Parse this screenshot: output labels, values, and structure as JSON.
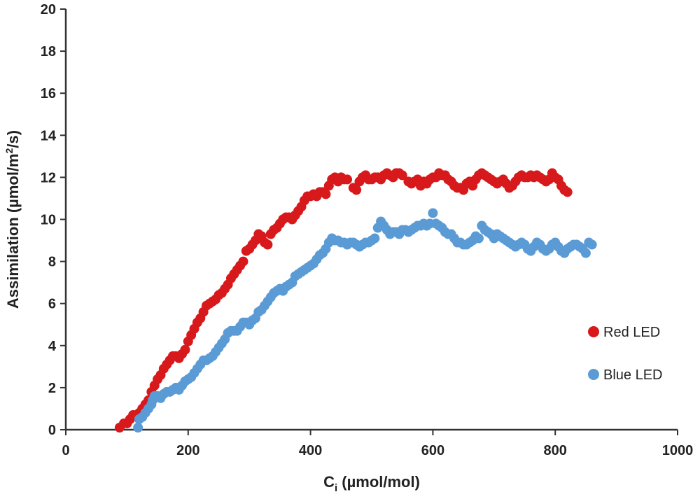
{
  "chart_data": {
    "type": "scatter",
    "title": "",
    "xlabel": {
      "main": "C",
      "sub": "i",
      "rest": " (µmol/mol)"
    },
    "ylabel": {
      "main": "Assimilation (µmol/m",
      "sup": "2",
      "rest": "/s)"
    },
    "xlim": [
      0,
      1000
    ],
    "ylim": [
      0,
      20
    ],
    "x_ticks": [
      0,
      200,
      400,
      600,
      800,
      1000
    ],
    "y_ticks": [
      0,
      2,
      4,
      6,
      8,
      10,
      12,
      14,
      16,
      18,
      20
    ],
    "grid": false,
    "legend_position": "right",
    "series": [
      {
        "name": "Red LED",
        "color": "#d7191c",
        "points": [
          [
            88,
            0.1
          ],
          [
            95,
            0.3
          ],
          [
            100,
            0.3
          ],
          [
            105,
            0.5
          ],
          [
            110,
            0.7
          ],
          [
            115,
            0.7
          ],
          [
            120,
            0.8
          ],
          [
            125,
            1.0
          ],
          [
            130,
            1.2
          ],
          [
            135,
            1.4
          ],
          [
            140,
            1.8
          ],
          [
            145,
            2.1
          ],
          [
            150,
            2.4
          ],
          [
            155,
            2.6
          ],
          [
            160,
            2.9
          ],
          [
            165,
            3.1
          ],
          [
            170,
            3.3
          ],
          [
            175,
            3.5
          ],
          [
            180,
            3.5
          ],
          [
            185,
            3.4
          ],
          [
            190,
            3.6
          ],
          [
            195,
            3.8
          ],
          [
            200,
            4.2
          ],
          [
            205,
            4.5
          ],
          [
            210,
            4.8
          ],
          [
            215,
            5.1
          ],
          [
            220,
            5.3
          ],
          [
            225,
            5.6
          ],
          [
            230,
            5.9
          ],
          [
            235,
            6.0
          ],
          [
            240,
            6.1
          ],
          [
            245,
            6.2
          ],
          [
            250,
            6.4
          ],
          [
            255,
            6.5
          ],
          [
            260,
            6.7
          ],
          [
            265,
            6.9
          ],
          [
            270,
            7.2
          ],
          [
            275,
            7.4
          ],
          [
            280,
            7.6
          ],
          [
            285,
            7.8
          ],
          [
            290,
            8.0
          ],
          [
            295,
            8.5
          ],
          [
            300,
            8.6
          ],
          [
            305,
            8.8
          ],
          [
            310,
            9.0
          ],
          [
            315,
            9.3
          ],
          [
            320,
            9.2
          ],
          [
            325,
            8.9
          ],
          [
            330,
            8.8
          ],
          [
            335,
            9.3
          ],
          [
            340,
            9.5
          ],
          [
            345,
            9.6
          ],
          [
            350,
            9.8
          ],
          [
            355,
            10.0
          ],
          [
            360,
            10.1
          ],
          [
            365,
            10.1
          ],
          [
            370,
            10.0
          ],
          [
            375,
            10.2
          ],
          [
            380,
            10.4
          ],
          [
            385,
            10.6
          ],
          [
            390,
            10.9
          ],
          [
            395,
            11.1
          ],
          [
            400,
            11.1
          ],
          [
            405,
            11.2
          ],
          [
            410,
            11.1
          ],
          [
            415,
            11.3
          ],
          [
            420,
            11.3
          ],
          [
            425,
            11.2
          ],
          [
            430,
            11.6
          ],
          [
            435,
            11.9
          ],
          [
            440,
            12.0
          ],
          [
            445,
            11.8
          ],
          [
            450,
            12.0
          ],
          [
            455,
            11.9
          ],
          [
            460,
            11.9
          ],
          [
            470,
            11.5
          ],
          [
            475,
            11.4
          ],
          [
            480,
            11.8
          ],
          [
            485,
            12.0
          ],
          [
            490,
            12.1
          ],
          [
            495,
            11.9
          ],
          [
            500,
            11.9
          ],
          [
            505,
            12.0
          ],
          [
            510,
            12.0
          ],
          [
            515,
            11.9
          ],
          [
            520,
            12.1
          ],
          [
            525,
            12.2
          ],
          [
            530,
            12.1
          ],
          [
            535,
            12.0
          ],
          [
            540,
            12.2
          ],
          [
            545,
            12.2
          ],
          [
            550,
            12.1
          ],
          [
            560,
            11.8
          ],
          [
            565,
            11.7
          ],
          [
            570,
            11.8
          ],
          [
            575,
            11.9
          ],
          [
            580,
            11.6
          ],
          [
            585,
            11.8
          ],
          [
            590,
            11.7
          ],
          [
            595,
            11.9
          ],
          [
            600,
            12.0
          ],
          [
            605,
            12.0
          ],
          [
            610,
            12.2
          ],
          [
            615,
            12.1
          ],
          [
            620,
            12.1
          ],
          [
            625,
            11.9
          ],
          [
            630,
            11.8
          ],
          [
            635,
            11.6
          ],
          [
            640,
            11.5
          ],
          [
            645,
            11.5
          ],
          [
            650,
            11.4
          ],
          [
            655,
            11.7
          ],
          [
            660,
            11.8
          ],
          [
            665,
            11.6
          ],
          [
            670,
            11.9
          ],
          [
            675,
            12.1
          ],
          [
            680,
            12.2
          ],
          [
            685,
            12.1
          ],
          [
            690,
            12.0
          ],
          [
            695,
            11.9
          ],
          [
            700,
            11.8
          ],
          [
            705,
            11.7
          ],
          [
            710,
            11.8
          ],
          [
            715,
            11.9
          ],
          [
            720,
            11.7
          ],
          [
            725,
            11.5
          ],
          [
            730,
            11.6
          ],
          [
            735,
            11.8
          ],
          [
            740,
            12.0
          ],
          [
            745,
            12.1
          ],
          [
            750,
            12.0
          ],
          [
            755,
            12.0
          ],
          [
            760,
            12.1
          ],
          [
            765,
            12.0
          ],
          [
            770,
            12.1
          ],
          [
            775,
            12.0
          ],
          [
            780,
            11.9
          ],
          [
            785,
            11.8
          ],
          [
            790,
            11.9
          ],
          [
            795,
            12.2
          ],
          [
            800,
            12.0
          ],
          [
            805,
            11.9
          ],
          [
            810,
            11.6
          ],
          [
            815,
            11.4
          ],
          [
            820,
            11.3
          ]
        ]
      },
      {
        "name": "Blue LED",
        "color": "#5b9bd5",
        "points": [
          [
            118,
            0.1
          ],
          [
            120,
            0.5
          ],
          [
            125,
            0.6
          ],
          [
            130,
            0.8
          ],
          [
            135,
            1.0
          ],
          [
            140,
            1.2
          ],
          [
            142,
            1.4
          ],
          [
            145,
            1.6
          ],
          [
            150,
            1.6
          ],
          [
            155,
            1.5
          ],
          [
            160,
            1.7
          ],
          [
            165,
            1.8
          ],
          [
            170,
            1.8
          ],
          [
            175,
            1.9
          ],
          [
            180,
            2.0
          ],
          [
            185,
            1.9
          ],
          [
            190,
            2.1
          ],
          [
            195,
            2.3
          ],
          [
            200,
            2.4
          ],
          [
            205,
            2.5
          ],
          [
            210,
            2.7
          ],
          [
            215,
            2.9
          ],
          [
            220,
            3.1
          ],
          [
            225,
            3.3
          ],
          [
            230,
            3.3
          ],
          [
            235,
            3.4
          ],
          [
            240,
            3.5
          ],
          [
            245,
            3.7
          ],
          [
            250,
            3.9
          ],
          [
            255,
            4.1
          ],
          [
            260,
            4.3
          ],
          [
            265,
            4.6
          ],
          [
            270,
            4.7
          ],
          [
            275,
            4.7
          ],
          [
            280,
            4.7
          ],
          [
            285,
            4.9
          ],
          [
            290,
            5.1
          ],
          [
            295,
            5.1
          ],
          [
            300,
            5.0
          ],
          [
            305,
            5.2
          ],
          [
            310,
            5.3
          ],
          [
            315,
            5.6
          ],
          [
            320,
            5.7
          ],
          [
            325,
            5.9
          ],
          [
            330,
            6.1
          ],
          [
            335,
            6.3
          ],
          [
            340,
            6.5
          ],
          [
            345,
            6.6
          ],
          [
            350,
            6.7
          ],
          [
            355,
            6.6
          ],
          [
            360,
            6.8
          ],
          [
            365,
            6.9
          ],
          [
            370,
            7.0
          ],
          [
            375,
            7.3
          ],
          [
            380,
            7.4
          ],
          [
            385,
            7.5
          ],
          [
            390,
            7.6
          ],
          [
            395,
            7.7
          ],
          [
            400,
            7.8
          ],
          [
            405,
            7.9
          ],
          [
            410,
            8.1
          ],
          [
            415,
            8.3
          ],
          [
            420,
            8.4
          ],
          [
            425,
            8.6
          ],
          [
            430,
            8.9
          ],
          [
            435,
            9.1
          ],
          [
            440,
            9.0
          ],
          [
            445,
            9.0
          ],
          [
            450,
            8.9
          ],
          [
            455,
            8.9
          ],
          [
            460,
            8.8
          ],
          [
            465,
            8.9
          ],
          [
            470,
            8.9
          ],
          [
            475,
            8.8
          ],
          [
            480,
            8.7
          ],
          [
            485,
            8.8
          ],
          [
            490,
            8.9
          ],
          [
            495,
            8.9
          ],
          [
            500,
            9.0
          ],
          [
            505,
            9.1
          ],
          [
            510,
            9.6
          ],
          [
            515,
            9.9
          ],
          [
            520,
            9.7
          ],
          [
            525,
            9.5
          ],
          [
            530,
            9.3
          ],
          [
            535,
            9.4
          ],
          [
            540,
            9.4
          ],
          [
            545,
            9.3
          ],
          [
            550,
            9.5
          ],
          [
            555,
            9.5
          ],
          [
            560,
            9.4
          ],
          [
            565,
            9.5
          ],
          [
            570,
            9.6
          ],
          [
            575,
            9.7
          ],
          [
            580,
            9.7
          ],
          [
            585,
            9.8
          ],
          [
            590,
            9.7
          ],
          [
            595,
            9.8
          ],
          [
            600,
            10.3
          ],
          [
            605,
            9.8
          ],
          [
            610,
            9.7
          ],
          [
            615,
            9.6
          ],
          [
            620,
            9.4
          ],
          [
            625,
            9.3
          ],
          [
            630,
            9.3
          ],
          [
            635,
            9.1
          ],
          [
            640,
            8.9
          ],
          [
            645,
            8.9
          ],
          [
            650,
            8.8
          ],
          [
            655,
            8.8
          ],
          [
            660,
            8.9
          ],
          [
            665,
            9.0
          ],
          [
            670,
            9.2
          ],
          [
            675,
            9.1
          ],
          [
            680,
            9.7
          ],
          [
            685,
            9.5
          ],
          [
            690,
            9.4
          ],
          [
            695,
            9.3
          ],
          [
            700,
            9.1
          ],
          [
            705,
            9.3
          ],
          [
            710,
            9.2
          ],
          [
            715,
            9.1
          ],
          [
            720,
            9.0
          ],
          [
            725,
            8.9
          ],
          [
            730,
            8.8
          ],
          [
            735,
            8.7
          ],
          [
            740,
            8.8
          ],
          [
            745,
            8.9
          ],
          [
            750,
            8.8
          ],
          [
            755,
            8.6
          ],
          [
            760,
            8.5
          ],
          [
            765,
            8.7
          ],
          [
            770,
            8.9
          ],
          [
            775,
            8.8
          ],
          [
            780,
            8.6
          ],
          [
            785,
            8.5
          ],
          [
            790,
            8.6
          ],
          [
            795,
            8.8
          ],
          [
            800,
            8.9
          ],
          [
            805,
            8.7
          ],
          [
            810,
            8.5
          ],
          [
            815,
            8.4
          ],
          [
            820,
            8.6
          ],
          [
            825,
            8.7
          ],
          [
            830,
            8.8
          ],
          [
            835,
            8.8
          ],
          [
            840,
            8.7
          ],
          [
            845,
            8.6
          ],
          [
            850,
            8.4
          ],
          [
            855,
            8.9
          ],
          [
            860,
            8.8
          ]
        ]
      }
    ]
  }
}
